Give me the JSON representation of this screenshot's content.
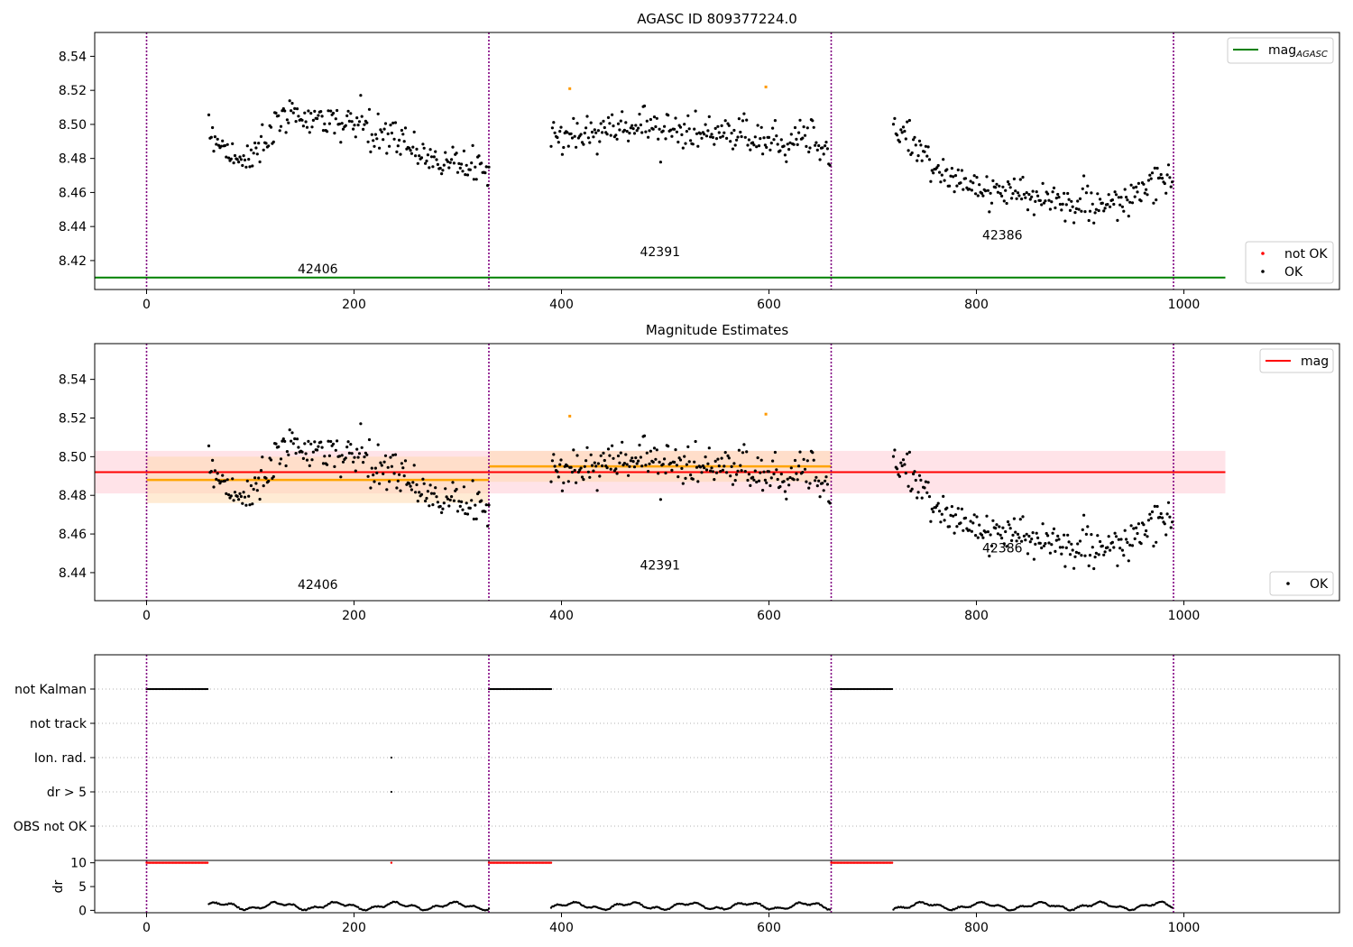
{
  "figure": {
    "top_title": "AGASC ID 809377224.0",
    "middle_title": "Magnitude Estimates"
  },
  "colors": {
    "ok": "#000000",
    "not_ok": "#ff0000",
    "outlier": "#ff9900",
    "agasc_line": "#008000",
    "mag_line": "#ff0000",
    "mag_band": "#ffc0cb",
    "obs_mean": "#ffa500",
    "obs_band": "#ffdab0",
    "boundary": "#800080",
    "axis": "#000000",
    "grid": "#b0b0b0"
  },
  "chart_data": [
    {
      "id": "top",
      "type": "scatter",
      "title": "AGASC ID 809377224.0",
      "xlim": [
        -50,
        1150
      ],
      "ylim": [
        8.403,
        8.554
      ],
      "xticks": [
        0,
        200,
        400,
        600,
        800,
        1000
      ],
      "yticks": [
        8.42,
        8.44,
        8.46,
        8.48,
        8.5,
        8.52,
        8.54
      ],
      "ytick_labels": [
        "8.42",
        "8.44",
        "8.46",
        "8.48",
        "8.50",
        "8.52",
        "8.54"
      ],
      "boundaries": [
        0,
        330,
        660,
        990
      ],
      "observations": [
        {
          "obsid": "42406",
          "label_x": 165,
          "label_y": 8.4125
        },
        {
          "obsid": "42391",
          "label_x": 495,
          "label_y": 8.4225
        },
        {
          "obsid": "42386",
          "label_x": 825,
          "label_y": 8.4325
        }
      ],
      "mag_agasc": {
        "value": 8.41,
        "x_range": [
          -50,
          1040
        ]
      },
      "legend_upper": {
        "position": "upper right",
        "entries": [
          "mag",
          "AGASC"
        ]
      },
      "legend_lower": {
        "position": "lower right",
        "entries": [
          "not OK",
          "OK"
        ]
      },
      "outliers": [
        [
          408,
          8.521
        ],
        [
          597,
          8.522
        ]
      ],
      "segments": [
        {
          "start": 60,
          "end": 330,
          "anchors": [
            [
              60,
              8.497
            ],
            [
              90,
              8.477
            ],
            [
              140,
              8.506
            ],
            [
              200,
              8.5
            ],
            [
              250,
              8.488
            ],
            [
              290,
              8.477
            ],
            [
              330,
              8.474
            ]
          ],
          "noise": 0.007,
          "step": 1.2
        },
        {
          "start": 390,
          "end": 660,
          "anchors": [
            [
              390,
              8.494
            ],
            [
              420,
              8.494
            ],
            [
              470,
              8.5
            ],
            [
              530,
              8.495
            ],
            [
              600,
              8.491
            ],
            [
              640,
              8.494
            ],
            [
              660,
              8.482
            ]
          ],
          "noise": 0.007,
          "step": 1.2
        },
        {
          "start": 720,
          "end": 990,
          "anchors": [
            [
              720,
              8.5
            ],
            [
              740,
              8.485
            ],
            [
              780,
              8.468
            ],
            [
              820,
              8.46
            ],
            [
              880,
              8.455
            ],
            [
              940,
              8.452
            ],
            [
              960,
              8.462
            ],
            [
              990,
              8.47
            ]
          ],
          "noise": 0.007,
          "step": 1.2
        }
      ]
    },
    {
      "id": "middle",
      "type": "scatter",
      "title": "Magnitude Estimates",
      "xlim": [
        -50,
        1150
      ],
      "ylim": [
        8.4255,
        8.5585
      ],
      "xticks": [
        0,
        200,
        400,
        600,
        800,
        1000
      ],
      "yticks": [
        8.44,
        8.46,
        8.48,
        8.5,
        8.52,
        8.54
      ],
      "ytick_labels": [
        "8.44",
        "8.46",
        "8.48",
        "8.50",
        "8.52",
        "8.54"
      ],
      "boundaries": [
        0,
        330,
        660,
        990
      ],
      "observations": [
        {
          "obsid": "42406",
          "label_x": 165,
          "label_y": 8.4315
        },
        {
          "obsid": "42391",
          "label_x": 495,
          "label_y": 8.4415
        },
        {
          "obsid": "42386",
          "label_x": 825,
          "label_y": 8.4505
        }
      ],
      "mag": {
        "value": 8.492,
        "band": [
          8.481,
          8.503
        ],
        "x_range": [
          -50,
          1040
        ]
      },
      "obs_means": [
        {
          "x": [
            0,
            330
          ],
          "mean": 8.488,
          "band": [
            8.476,
            8.5
          ]
        },
        {
          "x": [
            330,
            660
          ],
          "mean": 8.495,
          "band": [
            8.487,
            8.503
          ]
        }
      ],
      "legend_upper": {
        "position": "upper right",
        "entries": [
          "mag"
        ]
      },
      "legend_lower": {
        "position": "lower right",
        "entries": [
          "OK"
        ]
      }
    },
    {
      "id": "flags",
      "type": "scatter",
      "xlim": [
        -50,
        1150
      ],
      "xticks": [
        0,
        200,
        400,
        600,
        800,
        1000
      ],
      "flag_rows": [
        "not Kalman",
        "not track",
        "Ion. rad.",
        "dr > 5",
        "OBS not OK"
      ],
      "flags": {
        "not Kalman": [
          [
            0,
            60
          ],
          [
            330,
            390
          ],
          [
            660,
            720
          ]
        ],
        "not track": [],
        "Ion. rad.": [
          [
            236,
            236
          ]
        ],
        "dr > 5": [
          [
            236,
            236
          ]
        ],
        "OBS not OK": []
      },
      "dr": {
        "ylabel": "dr",
        "ylim": [
          -0.5,
          10.5
        ],
        "yticks": [
          0,
          5,
          10
        ],
        "saturated_value": 10,
        "saturated_ranges": [
          [
            0,
            60
          ],
          [
            236,
            236
          ],
          [
            330,
            390
          ],
          [
            660,
            720
          ]
        ],
        "typical_range": [
          0,
          2.5
        ]
      }
    }
  ]
}
